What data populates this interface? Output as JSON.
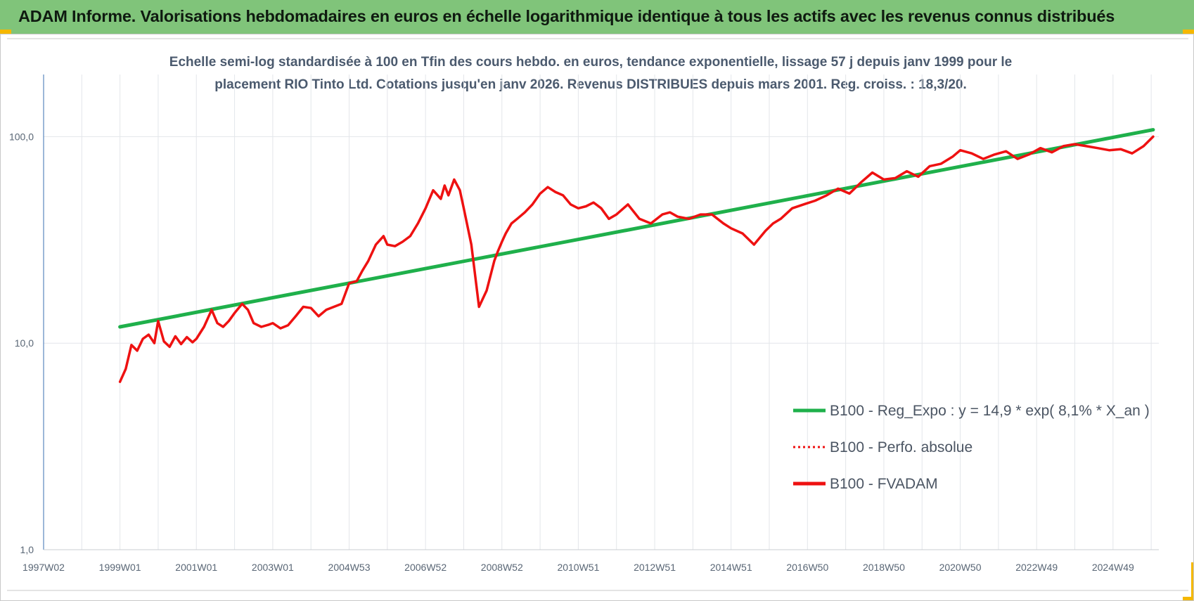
{
  "header": {
    "title": "ADAM Informe. Valorisations hebdomadaires en euros en échelle logarithmique identique à tous les actifs avec les revenus connus distribués"
  },
  "colors": {
    "banner": "#80c47a",
    "regression": "#1fb04b",
    "fvadam": "#ee1111",
    "grid": "#e3e6ea",
    "axis": "#3a6fb0",
    "accent": "#f5b800"
  },
  "chart_data": {
    "type": "line",
    "title_line1": "Echelle semi-log standardisée à 100 en Tfin des cours hebdo. en euros, tendance exponentielle, lissage 57 j depuis janv 1999 pour le",
    "title_line2": "placement RIO Tinto Ltd. Cotations jusqu'en janv 2026. Revenus DISTRIBUES depuis mars 2001. Reg. croiss. : 18,3/20.",
    "y_scale": "log",
    "ylim": [
      1,
      200
    ],
    "y_ticks": [
      "1,0",
      "10,0",
      "100,0"
    ],
    "x_ticks": [
      "1997W02",
      "1999W01",
      "2001W01",
      "2003W01",
      "2004W53",
      "2006W52",
      "2008W52",
      "2010W51",
      "2012W51",
      "2014W51",
      "2016W50",
      "2018W50",
      "2020W50",
      "2022W49",
      "2024W49"
    ],
    "x_tick_years": [
      1997,
      1999,
      2001,
      2003,
      2005,
      2007,
      2009,
      2011,
      2013,
      2015,
      2017,
      2019,
      2021,
      2023,
      2025
    ],
    "xlim_years": [
      1997,
      2026.2
    ],
    "grid": true,
    "legend_position": "bottom-right",
    "series": [
      {
        "name": "B100 - Reg_Expo : y = 14,9 * exp( 8,1% *  X_an )",
        "style": "solid",
        "color": "#1fb04b",
        "x": [
          1999.0,
          2026.05
        ],
        "y": [
          12.0,
          108.0
        ]
      },
      {
        "name": "B100 - Perfo. absolue",
        "style": "dotted",
        "color": "#ee1111",
        "x": [],
        "y": []
      },
      {
        "name": "B100 - FVADAM",
        "style": "solid",
        "color": "#ee1111",
        "x": [
          1999.0,
          1999.15,
          1999.3,
          1999.45,
          1999.6,
          1999.75,
          1999.9,
          2000.0,
          2000.15,
          2000.3,
          2000.45,
          2000.6,
          2000.75,
          2000.9,
          2001.0,
          2001.2,
          2001.4,
          2001.55,
          2001.7,
          2001.85,
          2002.0,
          2002.2,
          2002.35,
          2002.5,
          2002.7,
          2002.9,
          2003.0,
          2003.2,
          2003.4,
          2003.6,
          2003.8,
          2004.0,
          2004.2,
          2004.4,
          2004.6,
          2004.8,
          2005.0,
          2005.2,
          2005.35,
          2005.5,
          2005.7,
          2005.9,
          2006.0,
          2006.2,
          2006.4,
          2006.6,
          2006.8,
          2007.0,
          2007.2,
          2007.4,
          2007.5,
          2007.6,
          2007.75,
          2007.9,
          2008.0,
          2008.2,
          2008.4,
          2008.6,
          2008.8,
          2008.9,
          2009.0,
          2009.1,
          2009.25,
          2009.4,
          2009.6,
          2009.8,
          2010.0,
          2010.2,
          2010.4,
          2010.6,
          2010.8,
          2011.0,
          2011.2,
          2011.4,
          2011.6,
          2011.8,
          2012.0,
          2012.3,
          2012.6,
          2012.9,
          2013.2,
          2013.4,
          2013.6,
          2013.9,
          2014.2,
          2014.5,
          2014.8,
          2015.0,
          2015.3,
          2015.6,
          2015.9,
          2016.1,
          2016.3,
          2016.6,
          2016.9,
          2017.2,
          2017.5,
          2017.8,
          2018.1,
          2018.4,
          2018.7,
          2019.0,
          2019.3,
          2019.6,
          2019.9,
          2020.2,
          2020.5,
          2020.8,
          2021.0,
          2021.3,
          2021.6,
          2021.9,
          2022.2,
          2022.5,
          2022.8,
          2023.1,
          2023.4,
          2023.7,
          2024.0,
          2024.3,
          2024.6,
          2024.9,
          2025.2,
          2025.5,
          2025.8,
          2026.05
        ],
        "y": [
          6.5,
          7.5,
          9.8,
          9.2,
          10.5,
          11.0,
          10.0,
          12.8,
          10.2,
          9.6,
          10.8,
          9.9,
          10.7,
          10.1,
          10.5,
          12.0,
          14.5,
          12.5,
          12.0,
          12.8,
          14.0,
          15.5,
          14.5,
          12.5,
          12.0,
          12.3,
          12.5,
          11.8,
          12.2,
          13.5,
          15.0,
          14.8,
          13.5,
          14.5,
          15.0,
          15.5,
          19.5,
          20.0,
          22.5,
          25.0,
          30.0,
          33.0,
          30.0,
          29.5,
          31.0,
          33.0,
          38.0,
          45.0,
          55.0,
          50.0,
          58.0,
          52.0,
          62.0,
          55.0,
          45.0,
          30.0,
          15.0,
          18.0,
          25.0,
          28.0,
          31.0,
          34.0,
          38.0,
          40.0,
          43.0,
          47.0,
          53.0,
          57.0,
          54.0,
          52.0,
          47.0,
          45.0,
          46.0,
          48.0,
          45.0,
          40.0,
          42.0,
          47.0,
          40.0,
          38.0,
          42.0,
          43.0,
          41.0,
          40.0,
          42.0,
          42.0,
          38.0,
          36.0,
          34.0,
          30.0,
          35.0,
          38.0,
          40.0,
          45.0,
          47.0,
          49.0,
          52.0,
          56.0,
          53.0,
          60.0,
          67.0,
          62.0,
          63.0,
          68.0,
          64.0,
          72.0,
          74.0,
          80.0,
          86.0,
          83.0,
          78.0,
          82.0,
          85.0,
          78.0,
          82.0,
          88.0,
          84.0,
          90.0,
          92.0,
          90.0,
          88.0,
          86.0,
          87.0,
          83.0,
          90.0,
          100.0
        ]
      }
    ]
  }
}
